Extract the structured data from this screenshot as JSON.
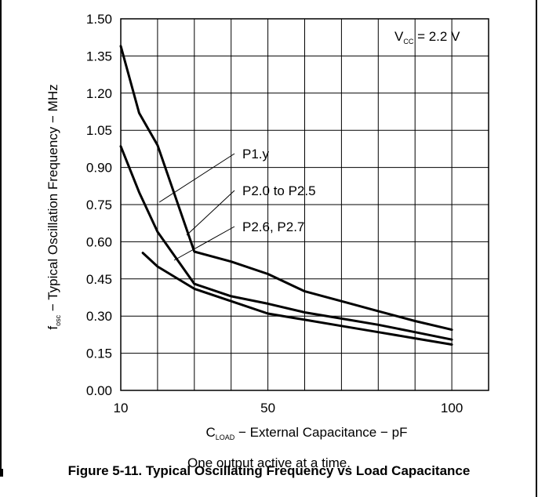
{
  "chart_data": {
    "type": "line",
    "xlabel": {
      "main": "C",
      "sub": "LOAD",
      "rest": " − External Capacitance − pF"
    },
    "ylabel": {
      "main": "f",
      "sub": "osc",
      "rest": " − Typical Oscillation Frequency − MHz"
    },
    "xlim": [
      10,
      110
    ],
    "ylim": [
      0,
      1.5
    ],
    "x_ticks": [
      10,
      50,
      100
    ],
    "x_tick_labels": [
      "10",
      "50",
      "100"
    ],
    "y_ticks": [
      0,
      0.15,
      0.3,
      0.45,
      0.6,
      0.75,
      0.9,
      1.05,
      1.2,
      1.35,
      1.5
    ],
    "y_tick_labels": [
      "0.00",
      "0.15",
      "0.30",
      "0.45",
      "0.60",
      "0.75",
      "0.90",
      "1.05",
      "1.20",
      "1.35",
      "1.50"
    ],
    "grid": true,
    "annotation": {
      "main": "V",
      "sub": "CC",
      "rest": " = 2.2 V"
    },
    "series": [
      {
        "name": "P1.y",
        "x": [
          10,
          15,
          20,
          30,
          40,
          50,
          60,
          70,
          80,
          90,
          100
        ],
        "y": [
          1.39,
          1.12,
          0.99,
          0.56,
          0.52,
          0.47,
          0.4,
          0.36,
          0.32,
          0.28,
          0.245
        ]
      },
      {
        "name": "P2.0 to P2.5",
        "x": [
          10,
          15,
          20,
          30,
          40,
          50,
          60,
          70,
          80,
          90,
          100
        ],
        "y": [
          0.985,
          0.8,
          0.64,
          0.43,
          0.38,
          0.35,
          0.315,
          0.29,
          0.265,
          0.235,
          0.205
        ]
      },
      {
        "name": "P2.6, P2.7",
        "x": [
          16,
          20,
          30,
          40,
          50,
          60,
          70,
          80,
          90,
          100
        ],
        "y": [
          0.555,
          0.5,
          0.41,
          0.36,
          0.31,
          0.285,
          0.26,
          0.235,
          0.21,
          0.185
        ]
      }
    ],
    "title": "Figure 5-11. Typical Oscillating Frequency vs Load Capacitance",
    "note": "One output active at a time."
  }
}
